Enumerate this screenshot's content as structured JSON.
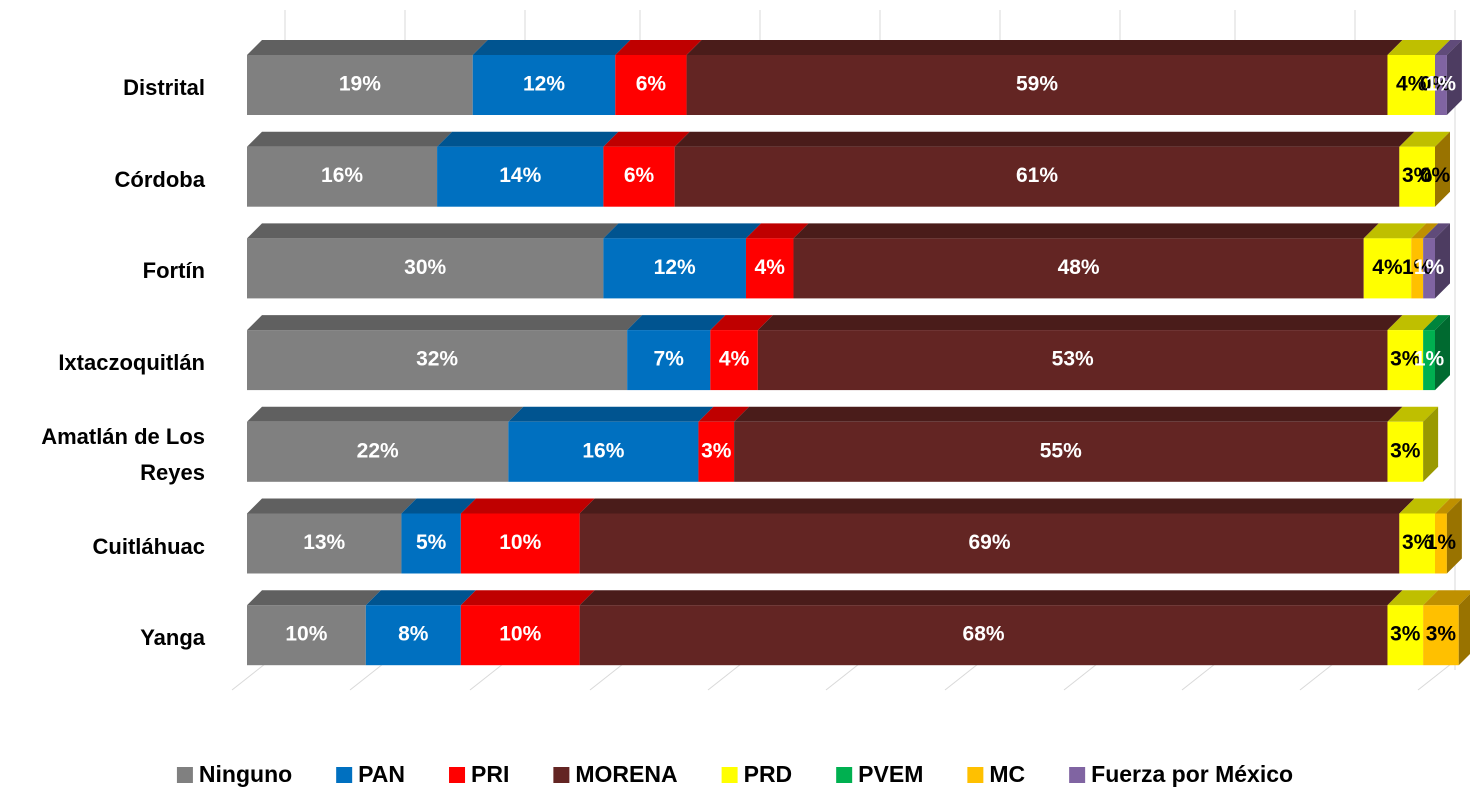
{
  "chart_data": {
    "type": "bar",
    "orientation": "horizontal",
    "stacked": true,
    "categories": [
      "Distrital",
      "Córdoba",
      "Fortín",
      "Ixtaczoquitlán",
      "Amatlán de Los Reyes",
      "Cuitláhuac",
      "Yanga"
    ],
    "xlim": [
      0,
      100
    ],
    "legend": "bottom",
    "series": [
      {
        "name": "Ninguno",
        "color": "#808080",
        "values": [
          19,
          16,
          30,
          32,
          22,
          13,
          10
        ],
        "value_labels": [
          "19%",
          "16%",
          "30%",
          "32%",
          "22%",
          "13%",
          "10%"
        ]
      },
      {
        "name": "PAN",
        "color": "#0070c0",
        "values": [
          12,
          14,
          12,
          7,
          16,
          5,
          8
        ],
        "value_labels": [
          "12%",
          "14%",
          "12%",
          "7%",
          "16%",
          "5%",
          "8%"
        ]
      },
      {
        "name": "PRI",
        "color": "#ff0000",
        "values": [
          6,
          6,
          4,
          4,
          3,
          10,
          10
        ],
        "value_labels": [
          "6%",
          "6%",
          "4%",
          "4%",
          "3%",
          "10%",
          "10%"
        ]
      },
      {
        "name": "MORENA",
        "color": "#632523",
        "values": [
          59,
          61,
          48,
          53,
          55,
          69,
          68
        ],
        "value_labels": [
          "59%",
          "61%",
          "48%",
          "53%",
          "55%",
          "69%",
          "68%"
        ]
      },
      {
        "name": "PRD",
        "color": "#ffff00",
        "values": [
          4,
          3,
          4,
          3,
          3,
          3,
          3
        ],
        "value_labels": [
          "4%",
          "3%",
          "4%",
          "3%",
          "3%",
          "3%",
          "3%"
        ]
      },
      {
        "name": "PVEM",
        "color": "#00b050",
        "values": [
          0,
          null,
          null,
          1,
          null,
          null,
          null
        ],
        "value_labels": [
          "0%",
          null,
          null,
          "1%",
          null,
          null,
          null
        ]
      },
      {
        "name": "MC",
        "color": "#ffc000",
        "values": [
          0,
          0,
          1,
          null,
          null,
          1,
          3
        ],
        "value_labels": [
          "0%",
          "0%",
          "1%",
          null,
          null,
          "1%",
          "3%"
        ]
      },
      {
        "name": "Fuerza por México",
        "color": "#8064a2",
        "values": [
          1,
          null,
          1,
          null,
          null,
          null,
          null
        ],
        "value_labels": [
          "1%",
          null,
          "1%",
          null,
          null,
          null,
          null
        ]
      }
    ]
  }
}
